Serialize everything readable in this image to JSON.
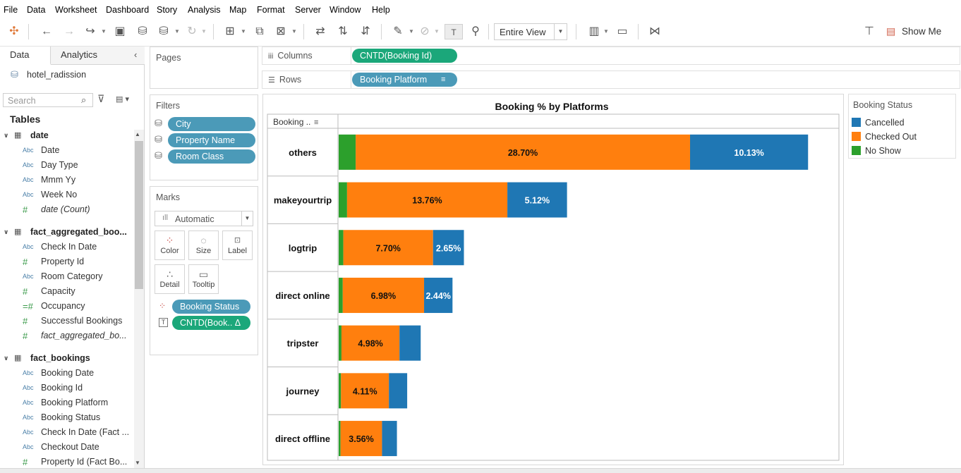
{
  "menu": [
    "File",
    "Data",
    "Worksheet",
    "Dashboard",
    "Story",
    "Analysis",
    "Map",
    "Format",
    "Server",
    "Window",
    "Help"
  ],
  "toolbar": {
    "fit_mode": "Entire View",
    "show_me": "Show Me"
  },
  "data_pane": {
    "tabs": [
      "Data",
      "Analytics"
    ],
    "datasource": "hotel_radission",
    "search_placeholder": "Search",
    "tables_header": "Tables",
    "tables": [
      {
        "name": "date",
        "fields": [
          {
            "type": "Abc",
            "name": "Date"
          },
          {
            "type": "Abc",
            "name": "Day Type"
          },
          {
            "type": "Abc",
            "name": "Mmm Yy"
          },
          {
            "type": "Abc",
            "name": "Week No"
          },
          {
            "type": "#",
            "name": "date (Count)",
            "italic": true
          }
        ]
      },
      {
        "name": "fact_aggregated_boo...",
        "fields": [
          {
            "type": "Abc",
            "name": "Check In Date"
          },
          {
            "type": "#",
            "name": "Property Id"
          },
          {
            "type": "Abc",
            "name": "Room Category"
          },
          {
            "type": "#",
            "name": "Capacity"
          },
          {
            "type": "=#",
            "name": "Occupancy"
          },
          {
            "type": "#",
            "name": "Successful Bookings"
          },
          {
            "type": "#",
            "name": "fact_aggregated_bo...",
            "italic": true
          }
        ]
      },
      {
        "name": "fact_bookings",
        "fields": [
          {
            "type": "Abc",
            "name": "Booking Date"
          },
          {
            "type": "Abc",
            "name": "Booking Id"
          },
          {
            "type": "Abc",
            "name": "Booking Platform"
          },
          {
            "type": "Abc",
            "name": "Booking Status"
          },
          {
            "type": "Abc",
            "name": "Check In Date (Fact ..."
          },
          {
            "type": "Abc",
            "name": "Checkout Date"
          },
          {
            "type": "#",
            "name": "Property Id (Fact Bo..."
          }
        ]
      }
    ]
  },
  "pages": {
    "title": "Pages"
  },
  "filters": {
    "title": "Filters",
    "items": [
      "City",
      "Property Name",
      "Room Class"
    ]
  },
  "marks": {
    "title": "Marks",
    "type": "Automatic",
    "buttons": [
      "Color",
      "Size",
      "Label",
      "Detail",
      "Tooltip"
    ],
    "pills": [
      "Booking Status",
      "CNTD(Book.. Δ"
    ]
  },
  "shelves": {
    "columns_label": "Columns",
    "columns_pill": "CNTD(Booking Id)",
    "rows_label": "Rows",
    "rows_pill": "Booking Platform"
  },
  "legend": {
    "title": "Booking Status",
    "items": [
      {
        "label": "Cancelled",
        "color": "#1f77b4"
      },
      {
        "label": "Checked Out",
        "color": "#ff7f0e"
      },
      {
        "label": "No Show",
        "color": "#2ca02c"
      }
    ]
  },
  "chart_data": {
    "type": "bar",
    "orientation": "horizontal",
    "stacked": true,
    "title": "Booking % by Platforms",
    "row_header": "Booking ..",
    "categories": [
      "others",
      "makeyourtrip",
      "logtrip",
      "direct online",
      "tripster",
      "journey",
      "direct offline"
    ],
    "series": [
      {
        "name": "No Show",
        "color": "#2ca02c",
        "values": [
          1.46,
          0.72,
          0.4,
          0.35,
          0.24,
          0.2,
          0.16
        ],
        "labels": [
          "",
          "",
          "",
          "",
          "",
          "",
          ""
        ]
      },
      {
        "name": "Checked Out",
        "color": "#ff7f0e",
        "values": [
          28.7,
          13.76,
          7.7,
          6.98,
          4.98,
          4.11,
          3.56
        ],
        "labels": [
          "28.70%",
          "13.76%",
          "7.70%",
          "6.98%",
          "4.98%",
          "4.11%",
          "3.56%"
        ]
      },
      {
        "name": "Cancelled",
        "color": "#1f77b4",
        "values": [
          10.13,
          5.12,
          2.65,
          2.44,
          1.82,
          1.57,
          1.28
        ],
        "labels": [
          "10.13%",
          "5.12%",
          "2.65%",
          "2.44%",
          "",
          "",
          ""
        ]
      }
    ],
    "xlim": [
      0,
      43
    ]
  }
}
